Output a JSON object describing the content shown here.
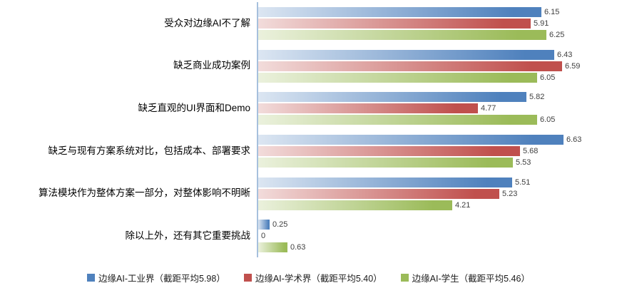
{
  "chart_data": {
    "type": "bar",
    "orientation": "horizontal",
    "title": "",
    "xlabel": "",
    "ylabel": "",
    "xlim": [
      0,
      7
    ],
    "grid": false,
    "legend_position": "bottom",
    "value_labels": true,
    "categories": [
      "受众对边缘AI不了解",
      "缺乏商业成功案例",
      "缺乏直观的UI界面和Demo",
      "缺乏与现有方案系统对比，包括成本、部署要求",
      "算法模块作为整体方案一部分，对整体影响不明晰",
      "除以上外，还有其它重要挑战"
    ],
    "series": [
      {
        "name": "边缘AI-工业界（截距平均5.98）",
        "color": "#4f81bd",
        "color_light": "#dce6f2",
        "values": [
          6.15,
          6.43,
          5.82,
          6.63,
          5.51,
          0.25
        ]
      },
      {
        "name": "边缘AI-学术界（截距平均5.40）",
        "color": "#c0504d",
        "color_light": "#f2dcdb",
        "values": [
          5.91,
          6.59,
          4.77,
          5.68,
          5.23,
          0
        ]
      },
      {
        "name": "边缘AI-学生（截距平均5.46）",
        "color": "#9bbb59",
        "color_light": "#ebf1dd",
        "values": [
          6.25,
          6.05,
          6.05,
          5.53,
          4.21,
          0.63
        ]
      }
    ]
  },
  "colors": {
    "background": "#ffffff",
    "axis_line": "#a6c0dd",
    "category_label": "#000000",
    "value_label": "#404040"
  }
}
